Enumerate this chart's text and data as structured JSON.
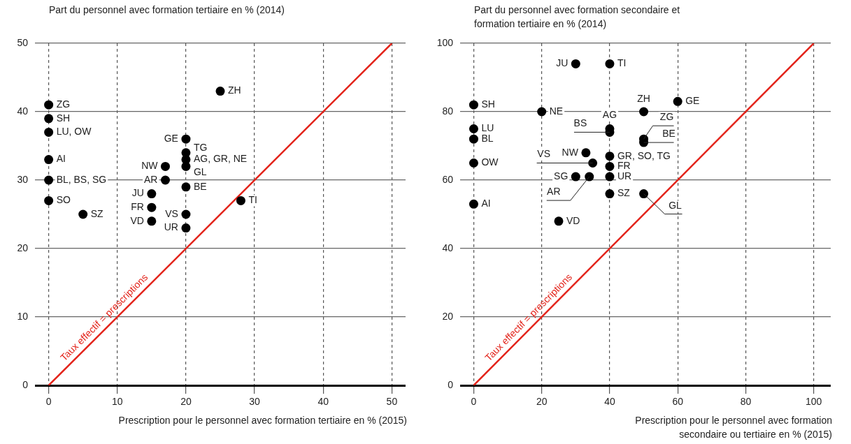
{
  "chart_data": [
    {
      "type": "scatter",
      "ylabel": "Part du personnel avec formation tertiaire en % (2014)",
      "xlabel": "Prescription pour le personnel avec formation tertiaire en % (2015)",
      "xlim": [
        -2,
        52
      ],
      "ylim": [
        0,
        50
      ],
      "xticks": [
        0,
        10,
        20,
        30,
        40,
        50
      ],
      "yticks": [
        0,
        10,
        20,
        30,
        40,
        50
      ],
      "grid": true,
      "series": [
        {
          "marker": "circle",
          "color": "#000000",
          "x": [
            0,
            0,
            0,
            0,
            0,
            0,
            5,
            25,
            20,
            20,
            20,
            20,
            20,
            17,
            17,
            15,
            15,
            15,
            20,
            20,
            28
          ],
          "values": [
            41,
            39,
            37,
            33,
            30,
            27,
            25,
            43,
            36,
            34,
            33,
            32,
            29,
            32,
            30,
            28,
            26,
            24,
            25,
            23,
            27
          ]
        },
        {
          "type": "line",
          "name": "Taux effectif = prescriptions",
          "color": "#e3241b",
          "line_style": "solid",
          "x": [
            0,
            50
          ],
          "values": [
            0,
            50
          ]
        }
      ],
      "annotations": [
        {
          "text": "ZG",
          "x": 0,
          "y": 41
        },
        {
          "text": "SH",
          "x": 0,
          "y": 39
        },
        {
          "text": "LU, OW",
          "x": 0,
          "y": 37
        },
        {
          "text": "AI",
          "x": 0,
          "y": 33
        },
        {
          "text": "BL, BS, SG",
          "x": 0,
          "y": 30
        },
        {
          "text": "SO",
          "x": 0,
          "y": 27
        },
        {
          "text": "SZ",
          "x": 5,
          "y": 25
        },
        {
          "text": "ZH",
          "x": 25,
          "y": 43
        },
        {
          "text": "GE",
          "x": 20,
          "y": 36
        },
        {
          "text": "TG",
          "x": 20,
          "y": 34
        },
        {
          "text": "AG, GR, NE",
          "x": 20,
          "y": 33
        },
        {
          "text": "GL",
          "x": 20,
          "y": 32
        },
        {
          "text": "BE",
          "x": 20,
          "y": 29
        },
        {
          "text": "NW",
          "x": 17,
          "y": 32
        },
        {
          "text": "AR",
          "x": 17,
          "y": 30
        },
        {
          "text": "JU",
          "x": 15,
          "y": 28
        },
        {
          "text": "FR",
          "x": 15,
          "y": 26
        },
        {
          "text": "VD",
          "x": 15,
          "y": 24
        },
        {
          "text": "VS",
          "x": 20,
          "y": 25
        },
        {
          "text": "UR",
          "x": 20,
          "y": 23
        },
        {
          "text": "TI",
          "x": 28,
          "y": 27
        }
      ]
    },
    {
      "type": "scatter",
      "ylabel": "Part du personnel avec formation secondaire et formation tertiaire en % (2014)",
      "xlabel": "Prescription pour le personnel avec formation secondaire ou tertiaire en % (2015)",
      "xlim": [
        -4,
        105
      ],
      "ylim": [
        0,
        100
      ],
      "xticks": [
        0,
        20,
        40,
        60,
        80,
        100
      ],
      "yticks": [
        0,
        20,
        40,
        60,
        80,
        100
      ],
      "grid": true,
      "series": [
        {
          "marker": "circle",
          "color": "#000000",
          "x": [
            30,
            40,
            0,
            20,
            50,
            60,
            40,
            40,
            50,
            50,
            0,
            0,
            0,
            0,
            33,
            35,
            40,
            40,
            40,
            30,
            34,
            40,
            50,
            25
          ],
          "values": [
            94,
            94,
            82,
            80,
            80,
            83,
            75,
            74,
            72,
            71,
            75,
            72,
            65,
            53,
            68,
            65,
            67,
            64,
            61,
            61,
            61,
            56,
            56,
            48
          ]
        },
        {
          "type": "line",
          "name": "Taux effectif = prescriptions",
          "color": "#e3241b",
          "line_style": "solid",
          "x": [
            0,
            100
          ],
          "values": [
            0,
            100
          ]
        }
      ],
      "annotations": [
        {
          "text": "JU",
          "x": 30,
          "y": 94
        },
        {
          "text": "TI",
          "x": 40,
          "y": 94
        },
        {
          "text": "SH",
          "x": 0,
          "y": 82
        },
        {
          "text": "NE",
          "x": 20,
          "y": 80
        },
        {
          "text": "ZH",
          "x": 50,
          "y": 80
        },
        {
          "text": "GE",
          "x": 60,
          "y": 83
        },
        {
          "text": "AG",
          "x": 40,
          "y": 75
        },
        {
          "text": "BS",
          "x": 40,
          "y": 74
        },
        {
          "text": "ZG",
          "x": 50,
          "y": 72
        },
        {
          "text": "BE",
          "x": 50,
          "y": 71
        },
        {
          "text": "LU",
          "x": 0,
          "y": 75
        },
        {
          "text": "BL",
          "x": 0,
          "y": 72
        },
        {
          "text": "OW",
          "x": 0,
          "y": 65
        },
        {
          "text": "AI",
          "x": 0,
          "y": 53
        },
        {
          "text": "NW",
          "x": 33,
          "y": 68
        },
        {
          "text": "VS",
          "x": 35,
          "y": 65
        },
        {
          "text": "GR, SO, TG",
          "x": 40,
          "y": 67
        },
        {
          "text": "FR",
          "x": 40,
          "y": 64
        },
        {
          "text": "UR",
          "x": 40,
          "y": 61
        },
        {
          "text": "SG",
          "x": 30,
          "y": 61
        },
        {
          "text": "AR",
          "x": 34,
          "y": 61
        },
        {
          "text": "SZ",
          "x": 40,
          "y": 56
        },
        {
          "text": "GL",
          "x": 50,
          "y": 56
        },
        {
          "text": "VD",
          "x": 25,
          "y": 48
        }
      ]
    }
  ]
}
